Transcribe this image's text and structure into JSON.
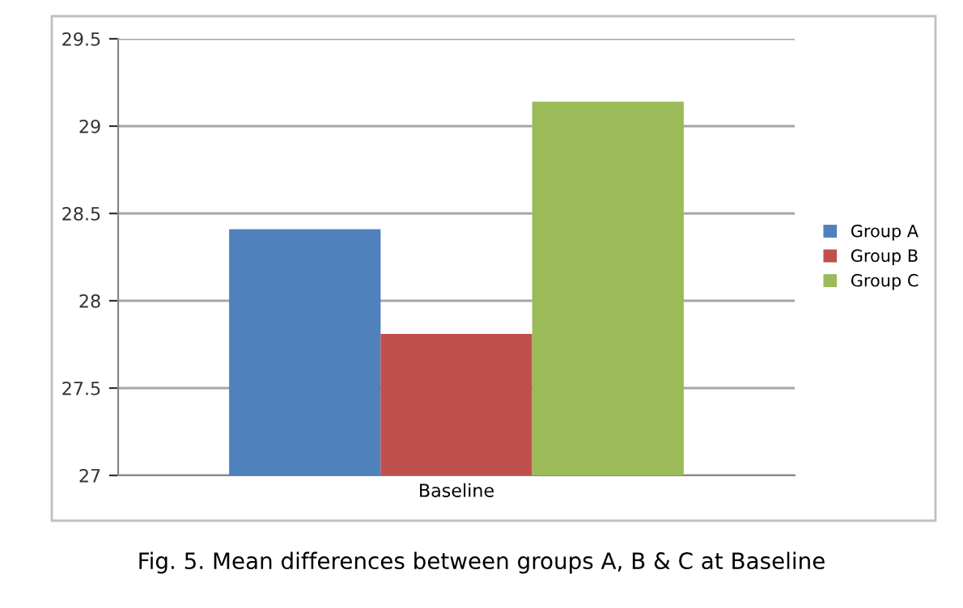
{
  "chart_data": {
    "type": "bar",
    "categories": [
      "Baseline"
    ],
    "series": [
      {
        "name": "Group A",
        "color": "#4f81bd",
        "values": [
          28.41
        ]
      },
      {
        "name": "Group B",
        "color": "#c0504d",
        "values": [
          27.81
        ]
      },
      {
        "name": "Group C",
        "color": "#9bbb59",
        "values": [
          29.14
        ]
      }
    ],
    "ylim": [
      27,
      29.5
    ],
    "yticks": [
      27,
      27.5,
      28,
      28.5,
      29,
      29.5
    ],
    "grid": "y",
    "legend": "right",
    "annotations": [
      "Fig. 5. Mean differences between groups A, B & C at Baseline"
    ]
  }
}
